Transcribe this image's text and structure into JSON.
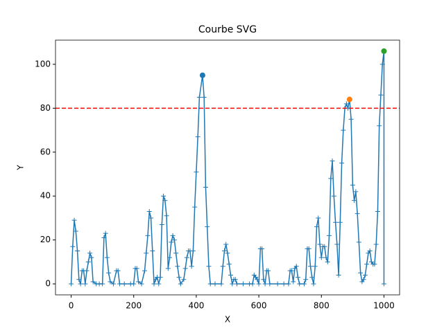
{
  "chart_data": {
    "type": "line",
    "title": "Courbe SVG",
    "xlabel": "X",
    "ylabel": "Y",
    "x": [
      0,
      5,
      10,
      15,
      20,
      25,
      30,
      35,
      40,
      45,
      50,
      55,
      60,
      65,
      70,
      80,
      90,
      100,
      105,
      110,
      115,
      120,
      125,
      135,
      145,
      150,
      155,
      170,
      190,
      200,
      205,
      210,
      215,
      225,
      235,
      240,
      245,
      250,
      255,
      260,
      265,
      270,
      275,
      280,
      285,
      290,
      295,
      300,
      305,
      310,
      315,
      320,
      325,
      330,
      335,
      340,
      345,
      350,
      360,
      365,
      370,
      375,
      380,
      385,
      390,
      395,
      400,
      405,
      410,
      420,
      425,
      430,
      435,
      440,
      445,
      460,
      480,
      485,
      490,
      495,
      500,
      505,
      510,
      515,
      520,
      525,
      530,
      550,
      570,
      580,
      585,
      590,
      595,
      600,
      605,
      610,
      615,
      620,
      625,
      630,
      635,
      660,
      680,
      695,
      700,
      705,
      710,
      715,
      720,
      725,
      730,
      745,
      750,
      755,
      760,
      765,
      770,
      775,
      780,
      785,
      790,
      795,
      800,
      805,
      810,
      815,
      820,
      825,
      830,
      835,
      840,
      845,
      850,
      855,
      860,
      865,
      870,
      875,
      880,
      885,
      890,
      895,
      900,
      905,
      910,
      915,
      920,
      925,
      930,
      935,
      940,
      945,
      950,
      955,
      960,
      965,
      970,
      975,
      980,
      985,
      990,
      995,
      1000,
      1000
    ],
    "series": [
      {
        "color": "#1f77b4",
        "values": [
          0,
          17,
          29,
          24,
          15,
          2,
          0,
          6,
          6,
          0,
          6,
          10,
          14,
          12,
          1,
          0,
          0,
          0,
          21,
          23,
          12,
          5,
          1,
          0,
          6,
          6,
          0,
          0,
          0,
          0,
          7,
          7,
          1,
          0,
          6,
          14,
          22,
          33,
          30,
          15,
          0,
          2,
          3,
          0,
          3,
          27,
          40,
          38,
          31,
          7,
          12,
          19,
          22,
          20,
          14,
          8,
          3,
          0,
          2,
          7,
          12,
          15,
          15,
          8,
          15,
          35,
          51,
          67,
          85,
          95,
          85,
          44,
          26,
          8,
          0,
          0,
          0,
          8,
          15,
          18,
          14,
          9,
          4,
          0,
          2,
          2,
          0,
          0,
          0,
          0,
          4,
          3,
          2,
          0,
          16,
          16,
          2,
          0,
          6,
          6,
          0,
          0,
          0,
          0,
          6,
          6,
          1,
          7,
          8,
          3,
          0,
          0,
          2,
          16,
          16,
          8,
          3,
          0,
          8,
          26,
          30,
          18,
          12,
          17,
          17,
          12,
          10,
          22,
          48,
          56,
          40,
          28,
          18,
          4,
          28,
          55,
          70,
          80,
          82,
          80,
          84,
          75,
          45,
          38,
          42,
          32,
          19,
          5,
          1,
          2,
          4,
          9,
          14,
          15,
          10,
          9,
          9,
          18,
          33,
          72,
          86,
          100,
          106,
          0
        ]
      }
    ],
    "highlights": [
      {
        "x": 420,
        "y": 95,
        "color": "#1f77b4"
      },
      {
        "x": 890,
        "y": 84,
        "color": "#ff7f0e"
      },
      {
        "x": 1000,
        "y": 106,
        "color": "#2ca02c"
      }
    ],
    "threshold": {
      "value": 80,
      "color": "#ff0000"
    },
    "xlim": [
      -50,
      1050
    ],
    "ylim": [
      -5,
      111
    ],
    "xticks": [
      0,
      200,
      400,
      600,
      800,
      1000
    ],
    "yticks": [
      0,
      20,
      40,
      60,
      80,
      100
    ]
  }
}
